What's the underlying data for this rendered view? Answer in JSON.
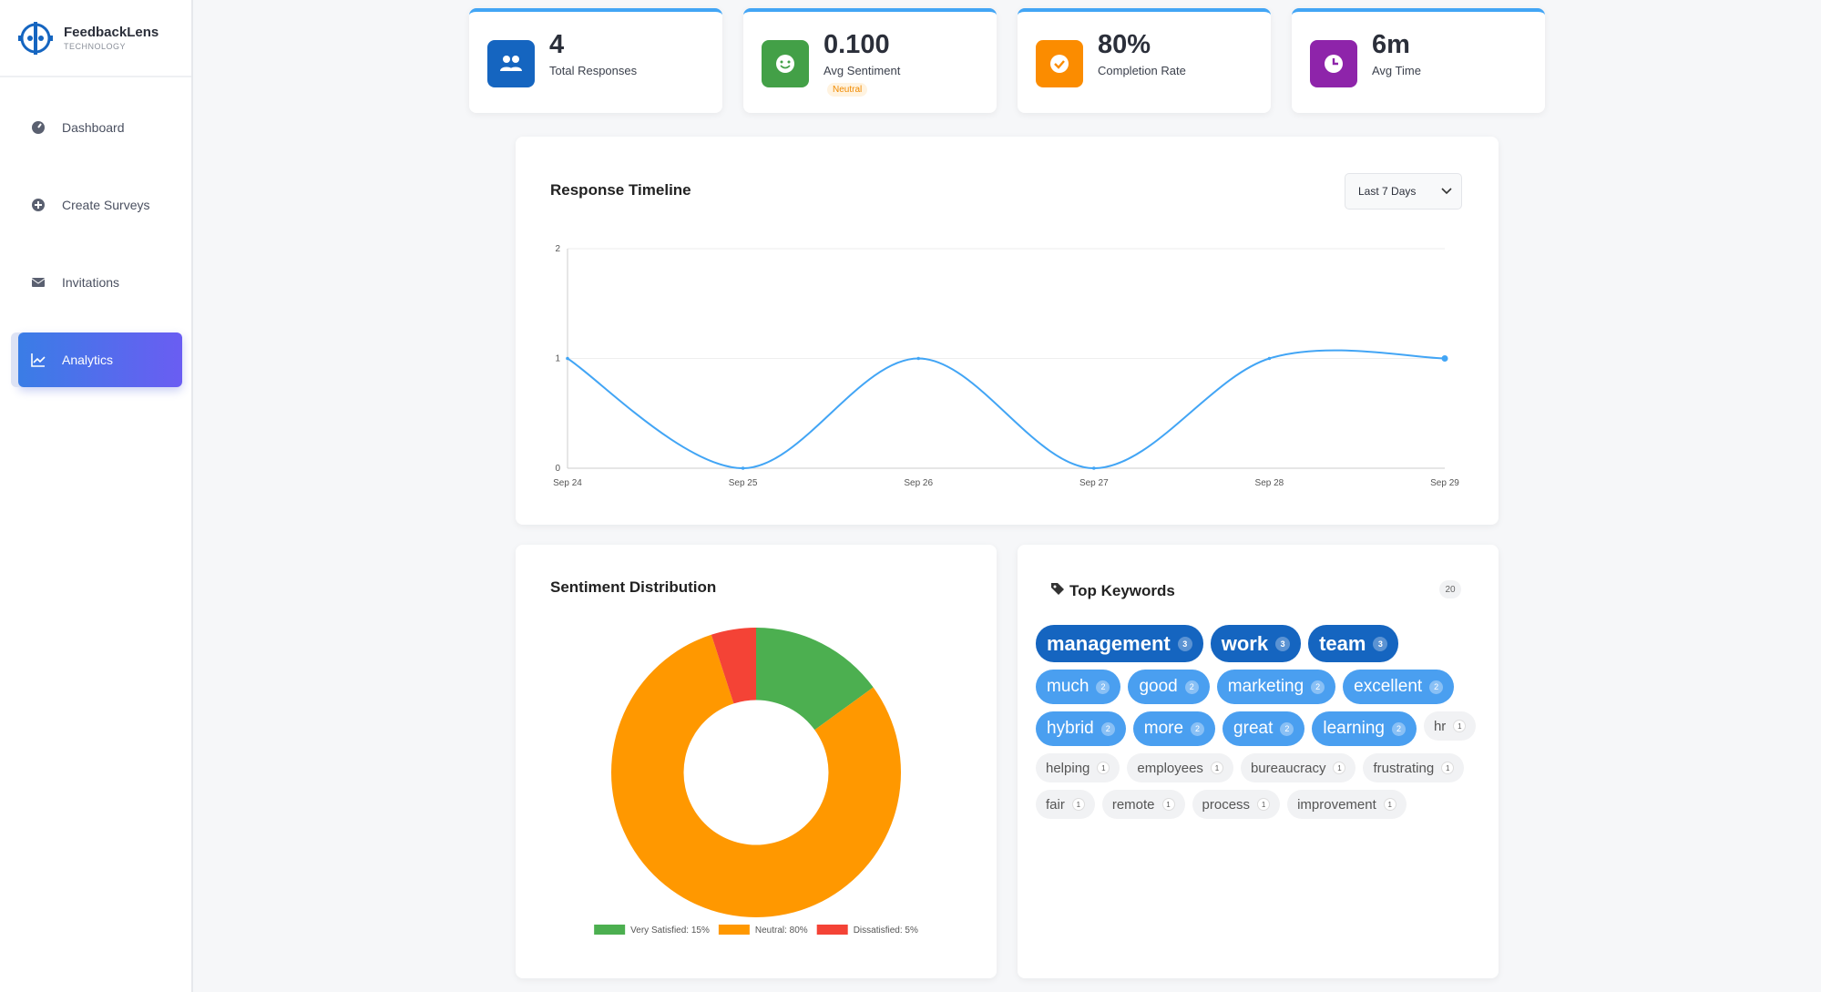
{
  "sidebar": {
    "brand": "FeedbackLens",
    "tagline": "TECHNOLOGY",
    "nav": [
      "Dashboard",
      "Create Surveys",
      "Invitations",
      "Analytics"
    ],
    "active": 3
  },
  "stats": [
    {
      "value": 4,
      "label": "Total Responses",
      "color": "#1565c0"
    },
    {
      "value": "0.100",
      "label": "Avg Sentiment",
      "badge": "Neutral",
      "color": "#43a047"
    },
    {
      "value": "80%",
      "label": "Completion Rate",
      "color": "#fb8c00"
    },
    {
      "value": "6m",
      "label": "Avg Time",
      "color": "#8e24aa"
    }
  ],
  "chart_data": [
    {
      "type": "line",
      "title": "Response Timeline",
      "range_selector": "Last 7 Days",
      "categories": [
        "Sep 24",
        "Sep 25",
        "Sep 26",
        "Sep 27",
        "Sep 28",
        "Sep 29"
      ],
      "values": [
        1,
        0,
        1,
        0,
        1,
        1
      ],
      "color": "#42a5f5",
      "ylim": [
        0,
        2
      ],
      "yticks": [
        0,
        1,
        2
      ],
      "grid": true
    },
    {
      "type": "pie",
      "title": "Sentiment Distribution",
      "labels": [
        "Very Satisfied: 15%",
        "Neutral: 80%",
        "Dissatisfied: 5%"
      ],
      "values": [
        15,
        80,
        5
      ],
      "colors": [
        "#4caf50",
        "#ff9800",
        "#f44336"
      ],
      "hole": 0.5
    }
  ],
  "keywords": {
    "title": "Top Keywords",
    "total": 20,
    "items": [
      {
        "word": "management",
        "count": 3
      },
      {
        "word": "work",
        "count": 3
      },
      {
        "word": "team",
        "count": 3
      },
      {
        "word": "much",
        "count": 2
      },
      {
        "word": "good",
        "count": 2
      },
      {
        "word": "marketing",
        "count": 2
      },
      {
        "word": "excellent",
        "count": 2
      },
      {
        "word": "hybrid",
        "count": 2
      },
      {
        "word": "more",
        "count": 2
      },
      {
        "word": "great",
        "count": 2
      },
      {
        "word": "learning",
        "count": 2
      },
      {
        "word": "hr",
        "count": 1
      },
      {
        "word": "helping",
        "count": 1
      },
      {
        "word": "employees",
        "count": 1
      },
      {
        "word": "bureaucracy",
        "count": 1
      },
      {
        "word": "frustrating",
        "count": 1
      },
      {
        "word": "fair",
        "count": 1
      },
      {
        "word": "remote",
        "count": 1
      },
      {
        "word": "process",
        "count": 1
      },
      {
        "word": "improvement",
        "count": 1
      }
    ]
  }
}
